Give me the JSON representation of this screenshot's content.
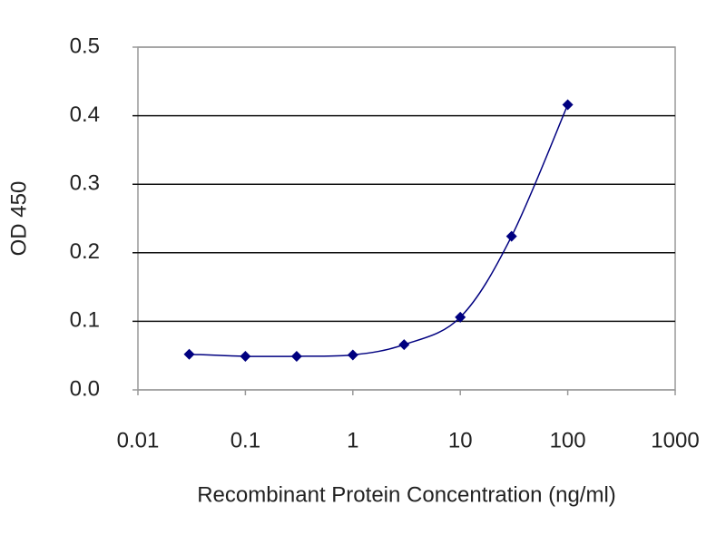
{
  "chart_data": {
    "type": "line",
    "xscale": "log",
    "grid": true,
    "ylabel": "OD 450",
    "xlabel": "Recombinant Protein Concentration (ng/ml)",
    "x": [
      0.03,
      0.1,
      0.3,
      1,
      3,
      10,
      30,
      100
    ],
    "series": [
      {
        "color": "#000080",
        "values": [
          0.052,
          0.049,
          0.049,
          0.051,
          0.066,
          0.106,
          0.224,
          0.416
        ]
      }
    ],
    "xlim": [
      0.01,
      1000
    ],
    "xticks": [
      0.01,
      0.1,
      1,
      10,
      100,
      1000
    ],
    "ylim": [
      0,
      0.5
    ],
    "yticks": [
      {
        "value": 0,
        "label": "0.0"
      },
      0.1,
      0.2,
      0.3,
      0.4,
      0.5
    ]
  }
}
